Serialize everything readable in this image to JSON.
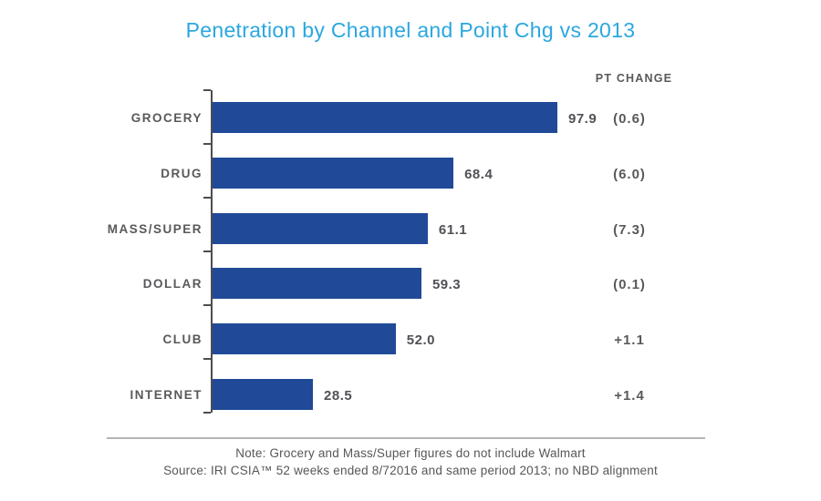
{
  "title": "Penetration by Channel and Point Chg vs 2013",
  "pt_change_header": "PT CHANGE",
  "chart_data": {
    "type": "bar",
    "orientation": "horizontal",
    "title": "Penetration by Channel and Point Chg vs 2013",
    "categories": [
      "GROCERY",
      "DRUG",
      "MASS/SUPER",
      "DOLLAR",
      "CLUB",
      "INTERNET"
    ],
    "values": [
      97.9,
      68.4,
      61.1,
      59.3,
      52.0,
      28.5
    ],
    "value_labels": [
      "97.9",
      "68.4",
      "61.1",
      "59.3",
      "52.0",
      "28.5"
    ],
    "pt_change": [
      "(0.6)",
      "(6.0)",
      "(7.3)",
      "(0.1)",
      "+1.1",
      "+1.4"
    ],
    "xlim": [
      0,
      100
    ],
    "grid": false,
    "legend": "none",
    "bar_color": "#204A98"
  },
  "notes": {
    "line1": "Note: Grocery and Mass/Super figures do not include Walmart",
    "line2": "Source: IRI CSIA™ 52 weeks ended 8/72016 and same period 2013; no NBD alignment"
  },
  "colors": {
    "title": "#2BA7DF",
    "bar": "#204A98",
    "label_gray": "#58595B",
    "axis": "#4D4D4F",
    "divider": "#B5B5B5"
  }
}
